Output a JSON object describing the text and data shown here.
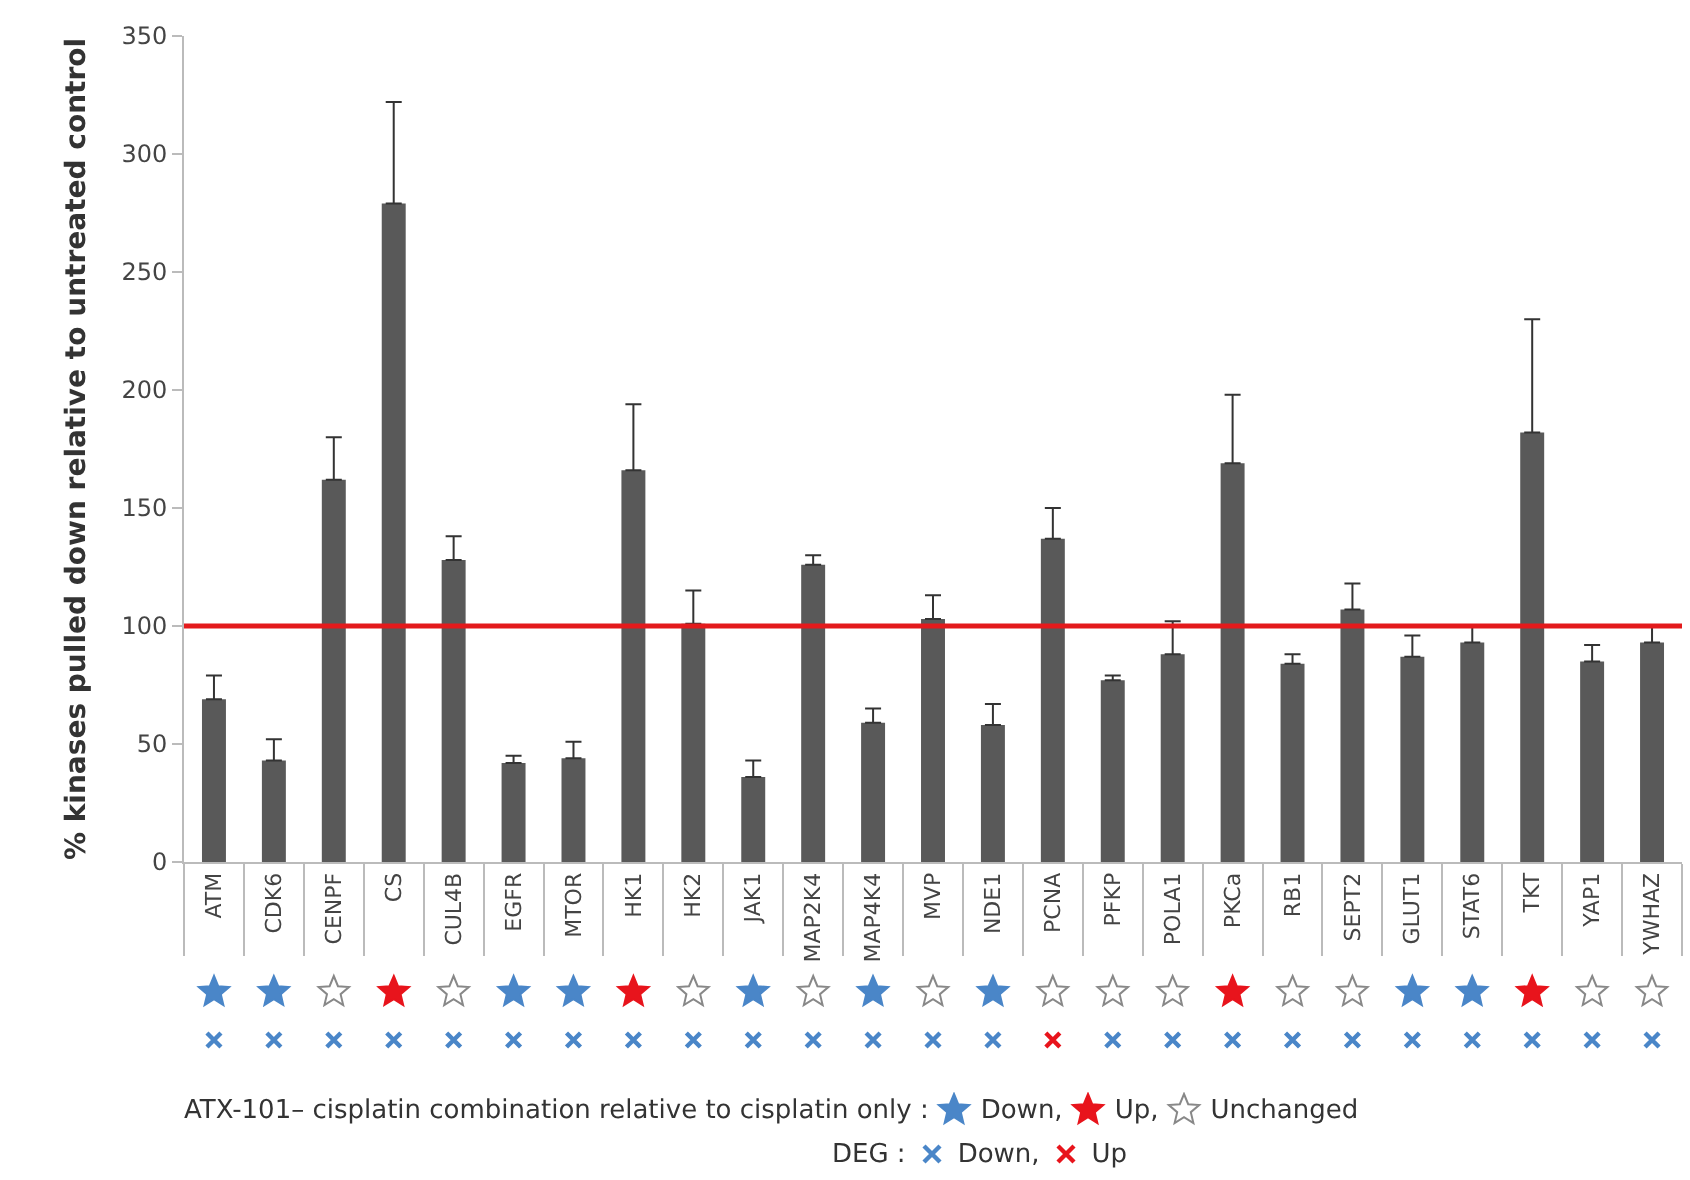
{
  "chart_data": {
    "type": "bar",
    "ylabel": "% kinases pulled down relative to untreated control",
    "categories": [
      "ATM",
      "CDK6",
      "CENPF",
      "CS",
      "CUL4B",
      "EGFR",
      "MTOR",
      "HK1",
      "HK2",
      "JAK1",
      "MAP2K4",
      "MAP4K4",
      "MVP",
      "NDE1",
      "PCNA",
      "PFKP",
      "POLA1",
      "PKCa",
      "RB1",
      "SEPT2",
      "GLUT1",
      "STAT6",
      "TKT",
      "YAP1",
      "YWHAZ"
    ],
    "values": [
      69,
      43,
      162,
      279,
      128,
      42,
      44,
      166,
      101,
      36,
      126,
      59,
      103,
      58,
      137,
      77,
      88,
      169,
      84,
      107,
      87,
      93,
      182,
      85,
      93
    ],
    "errors": [
      [
        69,
        79
      ],
      [
        43,
        52
      ],
      [
        162,
        180
      ],
      [
        279,
        322
      ],
      [
        128,
        138
      ],
      [
        42,
        45
      ],
      [
        44,
        51
      ],
      [
        166,
        194
      ],
      [
        101,
        115
      ],
      [
        36,
        43
      ],
      [
        126,
        130
      ],
      [
        59,
        65
      ],
      [
        103,
        113
      ],
      [
        58,
        67
      ],
      [
        137,
        150
      ],
      [
        77,
        79
      ],
      [
        88,
        102
      ],
      [
        169,
        198
      ],
      [
        84,
        88
      ],
      [
        107,
        118
      ],
      [
        87,
        96
      ],
      [
        93,
        100
      ],
      [
        182,
        230
      ],
      [
        85,
        92
      ],
      [
        93,
        100
      ]
    ],
    "color": "#595959",
    "ylim": [
      0,
      350
    ],
    "yticks": [
      0,
      50,
      100,
      150,
      200,
      250,
      300,
      350
    ],
    "grid": false,
    "ref_lines": [
      {
        "axis": "y",
        "value": 100,
        "color": "#e31a1c"
      }
    ],
    "annotations": [
      "ATX-101– cisplatin combination relative to cisplatin only :",
      "Down,",
      "Up,",
      "Unchanged",
      "DEG :",
      "Down,",
      "Up"
    ]
  }
}
